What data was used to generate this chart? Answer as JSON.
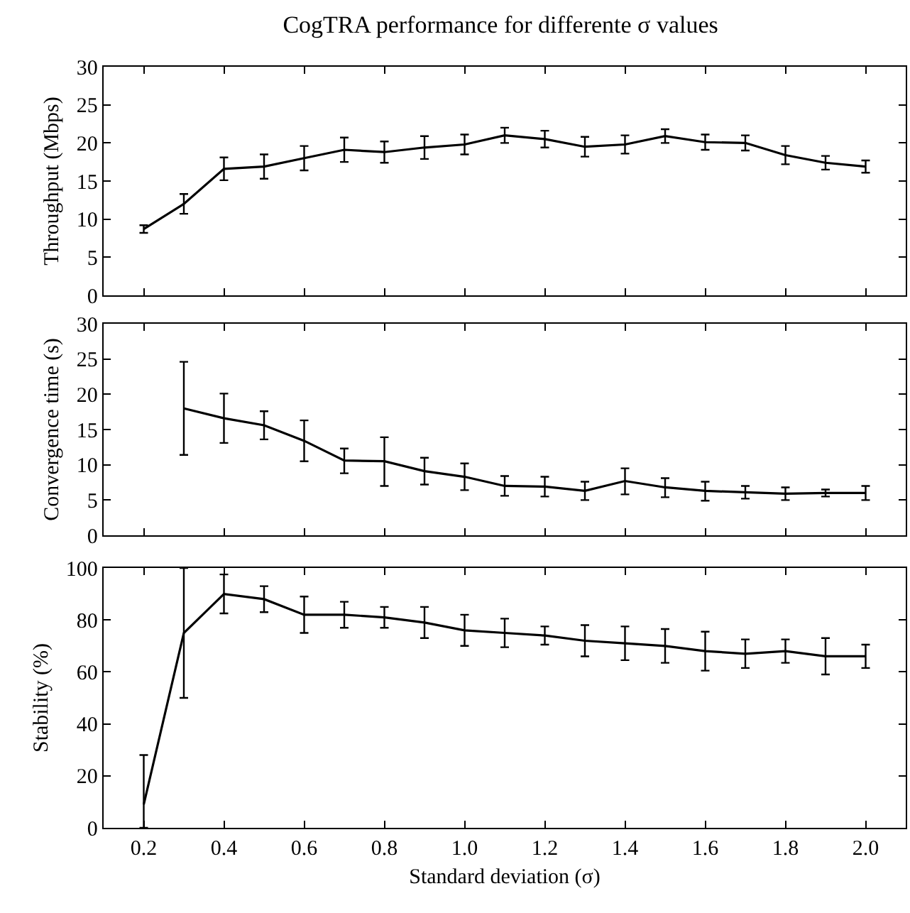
{
  "chart_data": [
    {
      "type": "line",
      "title": "CogTRA performance for differente σ values",
      "ylabel": "Throughput (Mbps)",
      "x": [
        0.2,
        0.3,
        0.4,
        0.5,
        0.6,
        0.7,
        0.8,
        0.9,
        1.0,
        1.1,
        1.2,
        1.3,
        1.4,
        1.5,
        1.6,
        1.7,
        1.8,
        1.9,
        2.0
      ],
      "series": [
        {
          "color": "#000000",
          "values": [
            8.7,
            12,
            16.6,
            16.9,
            18,
            19.1,
            18.8,
            19.4,
            19.8,
            21,
            20.5,
            19.5,
            19.8,
            20.9,
            20.1,
            20,
            18.4,
            17.4,
            16.9
          ],
          "errors": [
            0.5,
            1.3,
            1.5,
            1.6,
            1.6,
            1.6,
            1.4,
            1.5,
            1.3,
            1.0,
            1.1,
            1.3,
            1.2,
            0.9,
            1.0,
            1.0,
            1.2,
            0.9,
            0.8
          ]
        }
      ],
      "xlim": [
        0.1,
        2.1
      ],
      "xticks": [
        0.2,
        0.4,
        0.6,
        0.8,
        1.0,
        1.2,
        1.4,
        1.6,
        1.8,
        2.0
      ],
      "ylim": [
        0,
        30
      ],
      "yticks": [
        0,
        5,
        10,
        15,
        20,
        25,
        30
      ],
      "tick_labels": "y",
      "grid": false,
      "marker": "none",
      "line_style": "solid"
    },
    {
      "type": "line",
      "ylabel": "Convergence time (s)",
      "x": [
        0.3,
        0.4,
        0.5,
        0.6,
        0.7,
        0.8,
        0.9,
        1.0,
        1.1,
        1.2,
        1.3,
        1.4,
        1.5,
        1.6,
        1.7,
        1.8,
        1.9,
        2.0
      ],
      "series": [
        {
          "color": "#000000",
          "values": [
            18,
            16.6,
            15.6,
            13.4,
            10.6,
            10.5,
            9.1,
            8.3,
            7.0,
            6.9,
            6.3,
            7.7,
            6.8,
            6.3,
            6.1,
            5.9,
            6.0,
            6.0
          ],
          "errors": [
            [
              11.4,
              24.6
            ],
            [
              13.1,
              20.1
            ],
            [
              13.6,
              17.6
            ],
            [
              10.5,
              16.3
            ],
            [
              8.8,
              12.3
            ],
            [
              7.0,
              13.9
            ],
            [
              7.2,
              11.0
            ],
            [
              6.4,
              10.2
            ],
            [
              5.6,
              8.4
            ],
            [
              5.5,
              8.3
            ],
            [
              5.0,
              7.6
            ],
            [
              5.8,
              9.5
            ],
            [
              5.4,
              8.1
            ],
            [
              4.9,
              7.6
            ],
            [
              5.2,
              7.0
            ],
            [
              5.0,
              6.8
            ],
            [
              5.5,
              6.5
            ],
            [
              5.0,
              7.0
            ]
          ]
        }
      ],
      "xlim": [
        0.1,
        2.1
      ],
      "xticks": [
        0.2,
        0.4,
        0.6,
        0.8,
        1.0,
        1.2,
        1.4,
        1.6,
        1.8,
        2.0
      ],
      "ylim": [
        0,
        30
      ],
      "yticks": [
        0,
        5,
        10,
        15,
        20,
        25,
        30
      ],
      "tick_labels": "y",
      "grid": false,
      "marker": "none",
      "line_style": "solid"
    },
    {
      "type": "line",
      "xlabel": "Standard deviation (σ)",
      "ylabel": "Stability (%)",
      "x": [
        0.2,
        0.3,
        0.4,
        0.5,
        0.6,
        0.7,
        0.8,
        0.9,
        1.0,
        1.1,
        1.2,
        1.3,
        1.4,
        1.5,
        1.6,
        1.7,
        1.8,
        1.9,
        2.0
      ],
      "series": [
        {
          "color": "#000000",
          "values": [
            9,
            75,
            90,
            88,
            82,
            82,
            81,
            79,
            76,
            75,
            74,
            72,
            71,
            70,
            68,
            67,
            68,
            66,
            66
          ],
          "errors": [
            [
              0,
              28
            ],
            [
              50,
              100
            ],
            [
              82.5,
              97.5
            ],
            [
              83,
              93
            ],
            [
              75,
              89
            ],
            [
              77,
              87
            ],
            [
              77,
              85
            ],
            [
              73,
              85
            ],
            [
              70,
              82
            ],
            [
              69.5,
              80.5
            ],
            [
              70.5,
              77.5
            ],
            [
              66,
              78
            ],
            [
              64.5,
              77.5
            ],
            [
              63.5,
              76.5
            ],
            [
              60.5,
              75.5
            ],
            [
              61.5,
              72.5
            ],
            [
              63.5,
              72.5
            ],
            [
              59,
              73
            ],
            [
              61.5,
              70.5
            ]
          ]
        }
      ],
      "xlim": [
        0.1,
        2.1
      ],
      "xticks": [
        {
          "value": 0.2,
          "label": "0.2"
        },
        {
          "value": 0.4,
          "label": "0.4"
        },
        {
          "value": 0.6,
          "label": "0.6"
        },
        {
          "value": 0.8,
          "label": "0.8"
        },
        {
          "value": 1.0,
          "label": "1.0"
        },
        {
          "value": 1.2,
          "label": "1.2"
        },
        {
          "value": 1.4,
          "label": "1.4"
        },
        {
          "value": 1.6,
          "label": "1.6"
        },
        {
          "value": 1.8,
          "label": "1.8"
        },
        {
          "value": 2.0,
          "label": "2.0"
        }
      ],
      "ylim": [
        0,
        100
      ],
      "yticks": [
        0,
        20,
        40,
        60,
        80,
        100
      ],
      "grid": false,
      "marker": "none",
      "line_style": "solid"
    }
  ]
}
